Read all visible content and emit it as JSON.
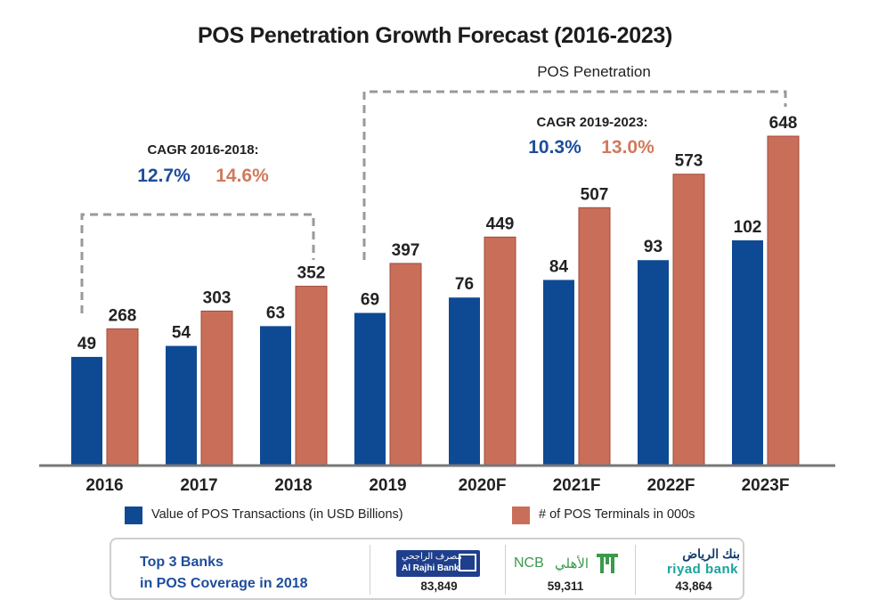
{
  "title": "POS Penetration Growth Forecast (2016-2023)",
  "chart_data": {
    "type": "bar",
    "categories": [
      "2016",
      "2017",
      "2018",
      "2019",
      "2020F",
      "2021F",
      "2022F",
      "2023F"
    ],
    "series": [
      {
        "name": "Value of POS Transactions (in USD Billions)",
        "values": [
          49,
          54,
          63,
          69,
          76,
          84,
          93,
          102
        ],
        "color": "#0e4a93"
      },
      {
        "name": "# of POS Terminals in 000s",
        "values": [
          268,
          303,
          352,
          397,
          449,
          507,
          573,
          648
        ],
        "color": "#c96f59"
      }
    ],
    "data_labels": {
      "series1": [
        "49",
        "54",
        "63",
        "69",
        "76",
        "84",
        "93",
        "102"
      ],
      "series2": [
        "268",
        "303",
        "352",
        "397",
        "449",
        "507",
        "573",
        "648"
      ]
    },
    "legend_position": "bottom",
    "annotations": {
      "cagr_2016_2018": {
        "label": "CAGR 2016-2018:",
        "value1": "12.7%",
        "value2": "14.6%"
      },
      "cagr_2019_2023": {
        "label": "CAGR 2019-2023:",
        "value1": "10.3%",
        "value2": "13.0%"
      },
      "pos_penetration": "POS Penetration"
    }
  },
  "colors": {
    "blue": "#0e4a93",
    "salmon": "#c96f59",
    "axis": "#777777",
    "bracket": "#999999",
    "cagr_blue": "#1e4d9b",
    "cagr_salmon": "#d07a5c"
  },
  "legend": {
    "item1": "Value of POS Transactions (in USD Billions)",
    "item2": "# of POS Terminals in 000s"
  },
  "banks_box": {
    "title_line1": "Top 3 Banks",
    "title_line2": "in POS Coverage in 2018",
    "banks": [
      {
        "logo_text1": "مصرف الراجحي",
        "logo_text2": "Al Rajhi Bank",
        "value": "83,849",
        "icon": "rajhi-logo"
      },
      {
        "logo_text1": "NCB",
        "logo_text2": "الأهلي",
        "value": "59,311",
        "icon": "ncb-logo"
      },
      {
        "logo_text1": "بنك الرياض",
        "logo_text2": "riyad bank",
        "value": "43,864",
        "icon": "riyad-logo"
      }
    ]
  }
}
